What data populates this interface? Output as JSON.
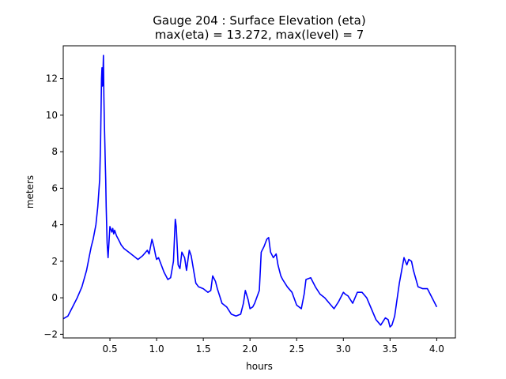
{
  "chart_data": {
    "type": "line",
    "title_line1": "Gauge 204 : Surface Elevation (eta)",
    "title_line2": "max(eta) =  13.272,    max(level) = 7",
    "xlabel": "hours",
    "ylabel": "meters",
    "xlim": [
      0.0,
      4.2
    ],
    "ylim": [
      -2.2,
      13.8
    ],
    "xticks": [
      0.5,
      1.0,
      1.5,
      2.0,
      2.5,
      3.0,
      3.5,
      4.0
    ],
    "xtick_labels": [
      "0.5",
      "1.0",
      "1.5",
      "2.0",
      "2.5",
      "3.0",
      "3.5",
      "4.0"
    ],
    "yticks": [
      -2,
      0,
      2,
      4,
      6,
      8,
      10,
      12
    ],
    "ytick_labels": [
      "−2",
      "0",
      "2",
      "4",
      "6",
      "8",
      "10",
      "12"
    ],
    "series": [
      {
        "name": "eta",
        "color": "#0000ff",
        "x": [
          0.0,
          0.05,
          0.1,
          0.15,
          0.2,
          0.25,
          0.28,
          0.3,
          0.32,
          0.35,
          0.37,
          0.39,
          0.4,
          0.41,
          0.415,
          0.42,
          0.425,
          0.43,
          0.435,
          0.44,
          0.445,
          0.45,
          0.455,
          0.46,
          0.47,
          0.48,
          0.5,
          0.52,
          0.53,
          0.54,
          0.55,
          0.57,
          0.6,
          0.62,
          0.65,
          0.7,
          0.75,
          0.8,
          0.85,
          0.9,
          0.92,
          0.95,
          0.97,
          0.99,
          1.0,
          1.02,
          1.05,
          1.08,
          1.1,
          1.12,
          1.15,
          1.18,
          1.2,
          1.21,
          1.23,
          1.25,
          1.27,
          1.3,
          1.32,
          1.35,
          1.37,
          1.4,
          1.42,
          1.45,
          1.5,
          1.55,
          1.58,
          1.6,
          1.63,
          1.65,
          1.7,
          1.75,
          1.8,
          1.85,
          1.9,
          1.93,
          1.95,
          1.98,
          2.0,
          2.03,
          2.05,
          2.1,
          2.12,
          2.15,
          2.18,
          2.2,
          2.22,
          2.25,
          2.28,
          2.3,
          2.33,
          2.35,
          2.4,
          2.45,
          2.5,
          2.55,
          2.58,
          2.6,
          2.65,
          2.7,
          2.75,
          2.8,
          2.85,
          2.9,
          2.95,
          3.0,
          3.02,
          3.05,
          3.1,
          3.15,
          3.2,
          3.25,
          3.3,
          3.35,
          3.4,
          3.45,
          3.48,
          3.5,
          3.52,
          3.55,
          3.6,
          3.65,
          3.68,
          3.7,
          3.73,
          3.75,
          3.8,
          3.85,
          3.9,
          3.95,
          4.0
        ],
        "values": [
          -1.15,
          -1.0,
          -0.5,
          0.0,
          0.6,
          1.5,
          2.3,
          2.8,
          3.2,
          4.0,
          5.0,
          6.5,
          8.5,
          12.0,
          12.6,
          11.6,
          12.2,
          13.272,
          11.0,
          9.6,
          8.5,
          7.5,
          6.5,
          5.0,
          3.0,
          2.2,
          3.9,
          3.6,
          3.8,
          3.5,
          3.7,
          3.4,
          3.1,
          2.9,
          2.7,
          2.5,
          2.3,
          2.1,
          2.3,
          2.6,
          2.4,
          3.2,
          2.8,
          2.3,
          2.1,
          2.2,
          1.8,
          1.4,
          1.2,
          1.0,
          1.1,
          2.0,
          4.3,
          3.9,
          1.8,
          1.6,
          2.5,
          2.2,
          1.5,
          2.6,
          2.3,
          1.4,
          0.8,
          0.6,
          0.5,
          0.3,
          0.4,
          1.2,
          0.9,
          0.5,
          -0.3,
          -0.5,
          -0.9,
          -1.0,
          -0.9,
          -0.3,
          0.4,
          -0.1,
          -0.6,
          -0.5,
          -0.3,
          0.4,
          2.5,
          2.8,
          3.2,
          3.3,
          2.5,
          2.2,
          2.4,
          1.8,
          1.2,
          1.0,
          0.6,
          0.3,
          -0.4,
          -0.6,
          0.2,
          1.0,
          1.1,
          0.6,
          0.2,
          0.0,
          -0.3,
          -0.6,
          -0.2,
          0.3,
          0.2,
          0.1,
          -0.3,
          0.3,
          0.3,
          0.0,
          -0.6,
          -1.2,
          -1.5,
          -1.1,
          -1.2,
          -1.6,
          -1.5,
          -1.0,
          0.8,
          2.2,
          1.8,
          2.1,
          2.0,
          1.5,
          0.6,
          0.5,
          0.5,
          0.0,
          -0.5
        ]
      }
    ]
  }
}
